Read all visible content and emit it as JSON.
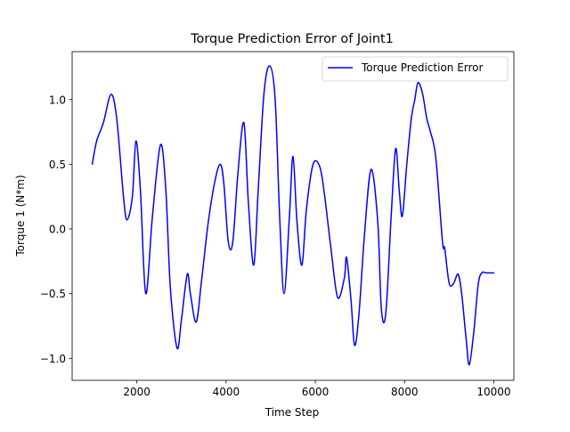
{
  "chart_data": {
    "type": "line",
    "title": "Torque Prediction Error of Joint1",
    "xlabel": "Time Step",
    "ylabel": "Torque 1 (N*m)",
    "xlim": [
      550,
      10450
    ],
    "ylim": [
      -1.17,
      1.37
    ],
    "xticks": [
      2000,
      4000,
      6000,
      8000,
      10000
    ],
    "xtick_labels": [
      "2000",
      "4000",
      "6000",
      "8000",
      "10000"
    ],
    "yticks": [
      -1.0,
      -0.5,
      0.0,
      0.5,
      1.0
    ],
    "ytick_labels": [
      "−1.0",
      "−0.5",
      "0.0",
      "0.5",
      "1.0"
    ],
    "grid": false,
    "legend_position": "top-right",
    "series": [
      {
        "name": "Torque Prediction Error",
        "color": "#0000ff",
        "x": [
          1000,
          1100,
          1250,
          1420,
          1550,
          1700,
          1780,
          1900,
          1980,
          2080,
          2200,
          2350,
          2530,
          2650,
          2750,
          2900,
          3000,
          3130,
          3200,
          3330,
          3450,
          3600,
          3750,
          3870,
          3950,
          4050,
          4150,
          4270,
          4400,
          4500,
          4620,
          4720,
          4850,
          4980,
          5100,
          5200,
          5300,
          5420,
          5500,
          5590,
          5700,
          5800,
          5950,
          6100,
          6200,
          6350,
          6500,
          6650,
          6700,
          6800,
          6880,
          6980,
          7100,
          7250,
          7400,
          7480,
          7580,
          7700,
          7800,
          7880,
          7950,
          8050,
          8150,
          8230,
          8300,
          8400,
          8500,
          8580,
          8700,
          8850,
          8900,
          9000,
          9100,
          9200,
          9280,
          9380,
          9450,
          9550,
          9650,
          9730,
          9830,
          9930,
          10000
        ],
        "y": [
          0.5,
          0.68,
          0.82,
          1.04,
          0.85,
          0.25,
          0.07,
          0.25,
          0.68,
          0.3,
          -0.5,
          0.1,
          0.65,
          0.3,
          -0.45,
          -0.92,
          -0.7,
          -0.35,
          -0.5,
          -0.72,
          -0.4,
          0.05,
          0.37,
          0.5,
          0.35,
          -0.1,
          -0.1,
          0.45,
          0.82,
          0.2,
          -0.28,
          0.3,
          1.05,
          1.26,
          1.0,
          0.1,
          -0.5,
          0.1,
          0.56,
          0.05,
          -0.28,
          0.15,
          0.5,
          0.48,
          0.28,
          -0.15,
          -0.53,
          -0.38,
          -0.22,
          -0.55,
          -0.9,
          -0.65,
          -0.05,
          0.46,
          0.05,
          -0.62,
          -0.65,
          0.1,
          0.62,
          0.3,
          0.1,
          0.5,
          0.85,
          1.0,
          1.13,
          1.05,
          0.85,
          0.75,
          0.55,
          -0.1,
          -0.15,
          -0.42,
          -0.42,
          -0.35,
          -0.5,
          -0.85,
          -1.05,
          -0.8,
          -0.43,
          -0.34,
          -0.34,
          -0.34,
          -0.34
        ]
      }
    ]
  }
}
